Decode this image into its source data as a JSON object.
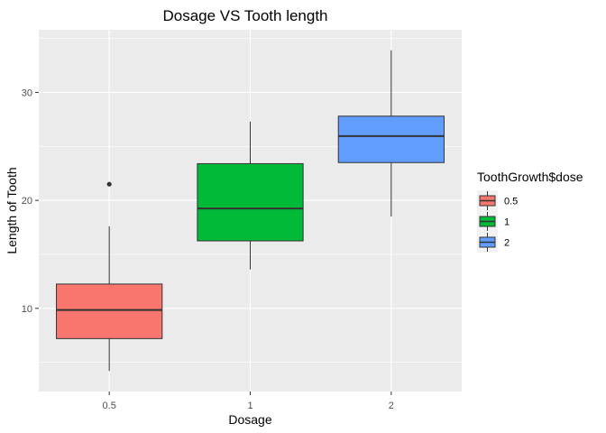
{
  "chart_data": {
    "type": "boxplot",
    "title": "Dosage VS Tooth length",
    "xlabel": "Dosage",
    "ylabel": "Length of Tooth",
    "categories": [
      "0.5",
      "1",
      "2"
    ],
    "ylim": [
      2.3,
      35.8
    ],
    "yticks": [
      10,
      20,
      30
    ],
    "grid": true,
    "legend": {
      "title": "ToothGrowth$dose",
      "position": "right",
      "entries": [
        "0.5",
        "1",
        "2"
      ]
    },
    "series": [
      {
        "category": "0.5",
        "min": 4.2,
        "q1": 7.2,
        "median": 9.85,
        "q3": 12.25,
        "max": 17.6,
        "outliers": [
          21.5
        ],
        "color": "#F8766D"
      },
      {
        "category": "1",
        "min": 13.6,
        "q1": 16.25,
        "median": 19.25,
        "q3": 23.4,
        "max": 27.3,
        "outliers": [],
        "color": "#00BA38"
      },
      {
        "category": "2",
        "min": 18.5,
        "q1": 23.5,
        "median": 25.95,
        "q3": 27.8,
        "max": 33.9,
        "outliers": [],
        "color": "#619CFF"
      }
    ]
  }
}
